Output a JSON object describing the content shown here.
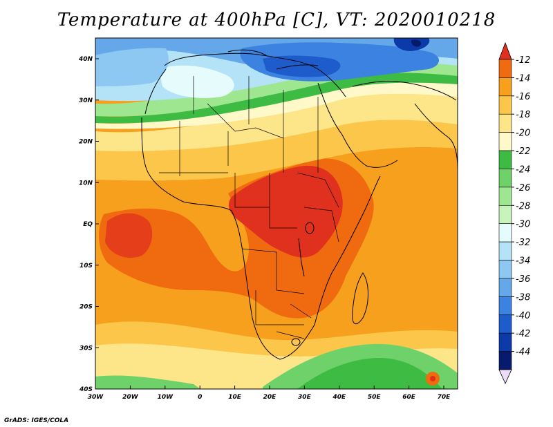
{
  "title": "Temperature at 400hPa [C], VT: 2020010218",
  "credit": "GrADS: IGES/COLA",
  "axes": {
    "lat_labels": [
      "40N",
      "30N",
      "20N",
      "10N",
      "EQ",
      "10S",
      "20S",
      "30S",
      "40S"
    ],
    "lon_labels": [
      "30W",
      "20W",
      "10W",
      "0",
      "10E",
      "20E",
      "30E",
      "40E",
      "50E",
      "60E",
      "70E"
    ]
  },
  "colorbar": {
    "labels": [
      "-12",
      "-14",
      "-16",
      "-18",
      "-20",
      "-22",
      "-24",
      "-26",
      "-28",
      "-30",
      "-32",
      "-34",
      "-36",
      "-38",
      "-40",
      "-42",
      "-44"
    ],
    "colors": [
      "#e0301e",
      "#f06a10",
      "#f7a01e",
      "#fbc64a",
      "#fde58a",
      "#fff8c8",
      "#3dbb43",
      "#6fd16a",
      "#9ee690",
      "#c8f3bc",
      "#e6fbfb",
      "#b4e2f6",
      "#8cc8f2",
      "#64a8ea",
      "#3c82e0",
      "#1e5ccc",
      "#0c3aa8",
      "#061a6e",
      "#ecdcf8"
    ]
  },
  "legend": {
    "position": "right",
    "orientation": "vertical"
  },
  "regions": [
    {
      "name": "sahara-warm-band",
      "color": "#fde58a"
    },
    {
      "name": "central-africa-core",
      "color": "#e0301e"
    },
    {
      "name": "southern-atlantic-warm",
      "color": "#f06a10"
    },
    {
      "name": "mediterranean-cold",
      "color": "#3c82e0"
    },
    {
      "name": "southern-ocean-green",
      "color": "#3dbb43"
    }
  ]
}
